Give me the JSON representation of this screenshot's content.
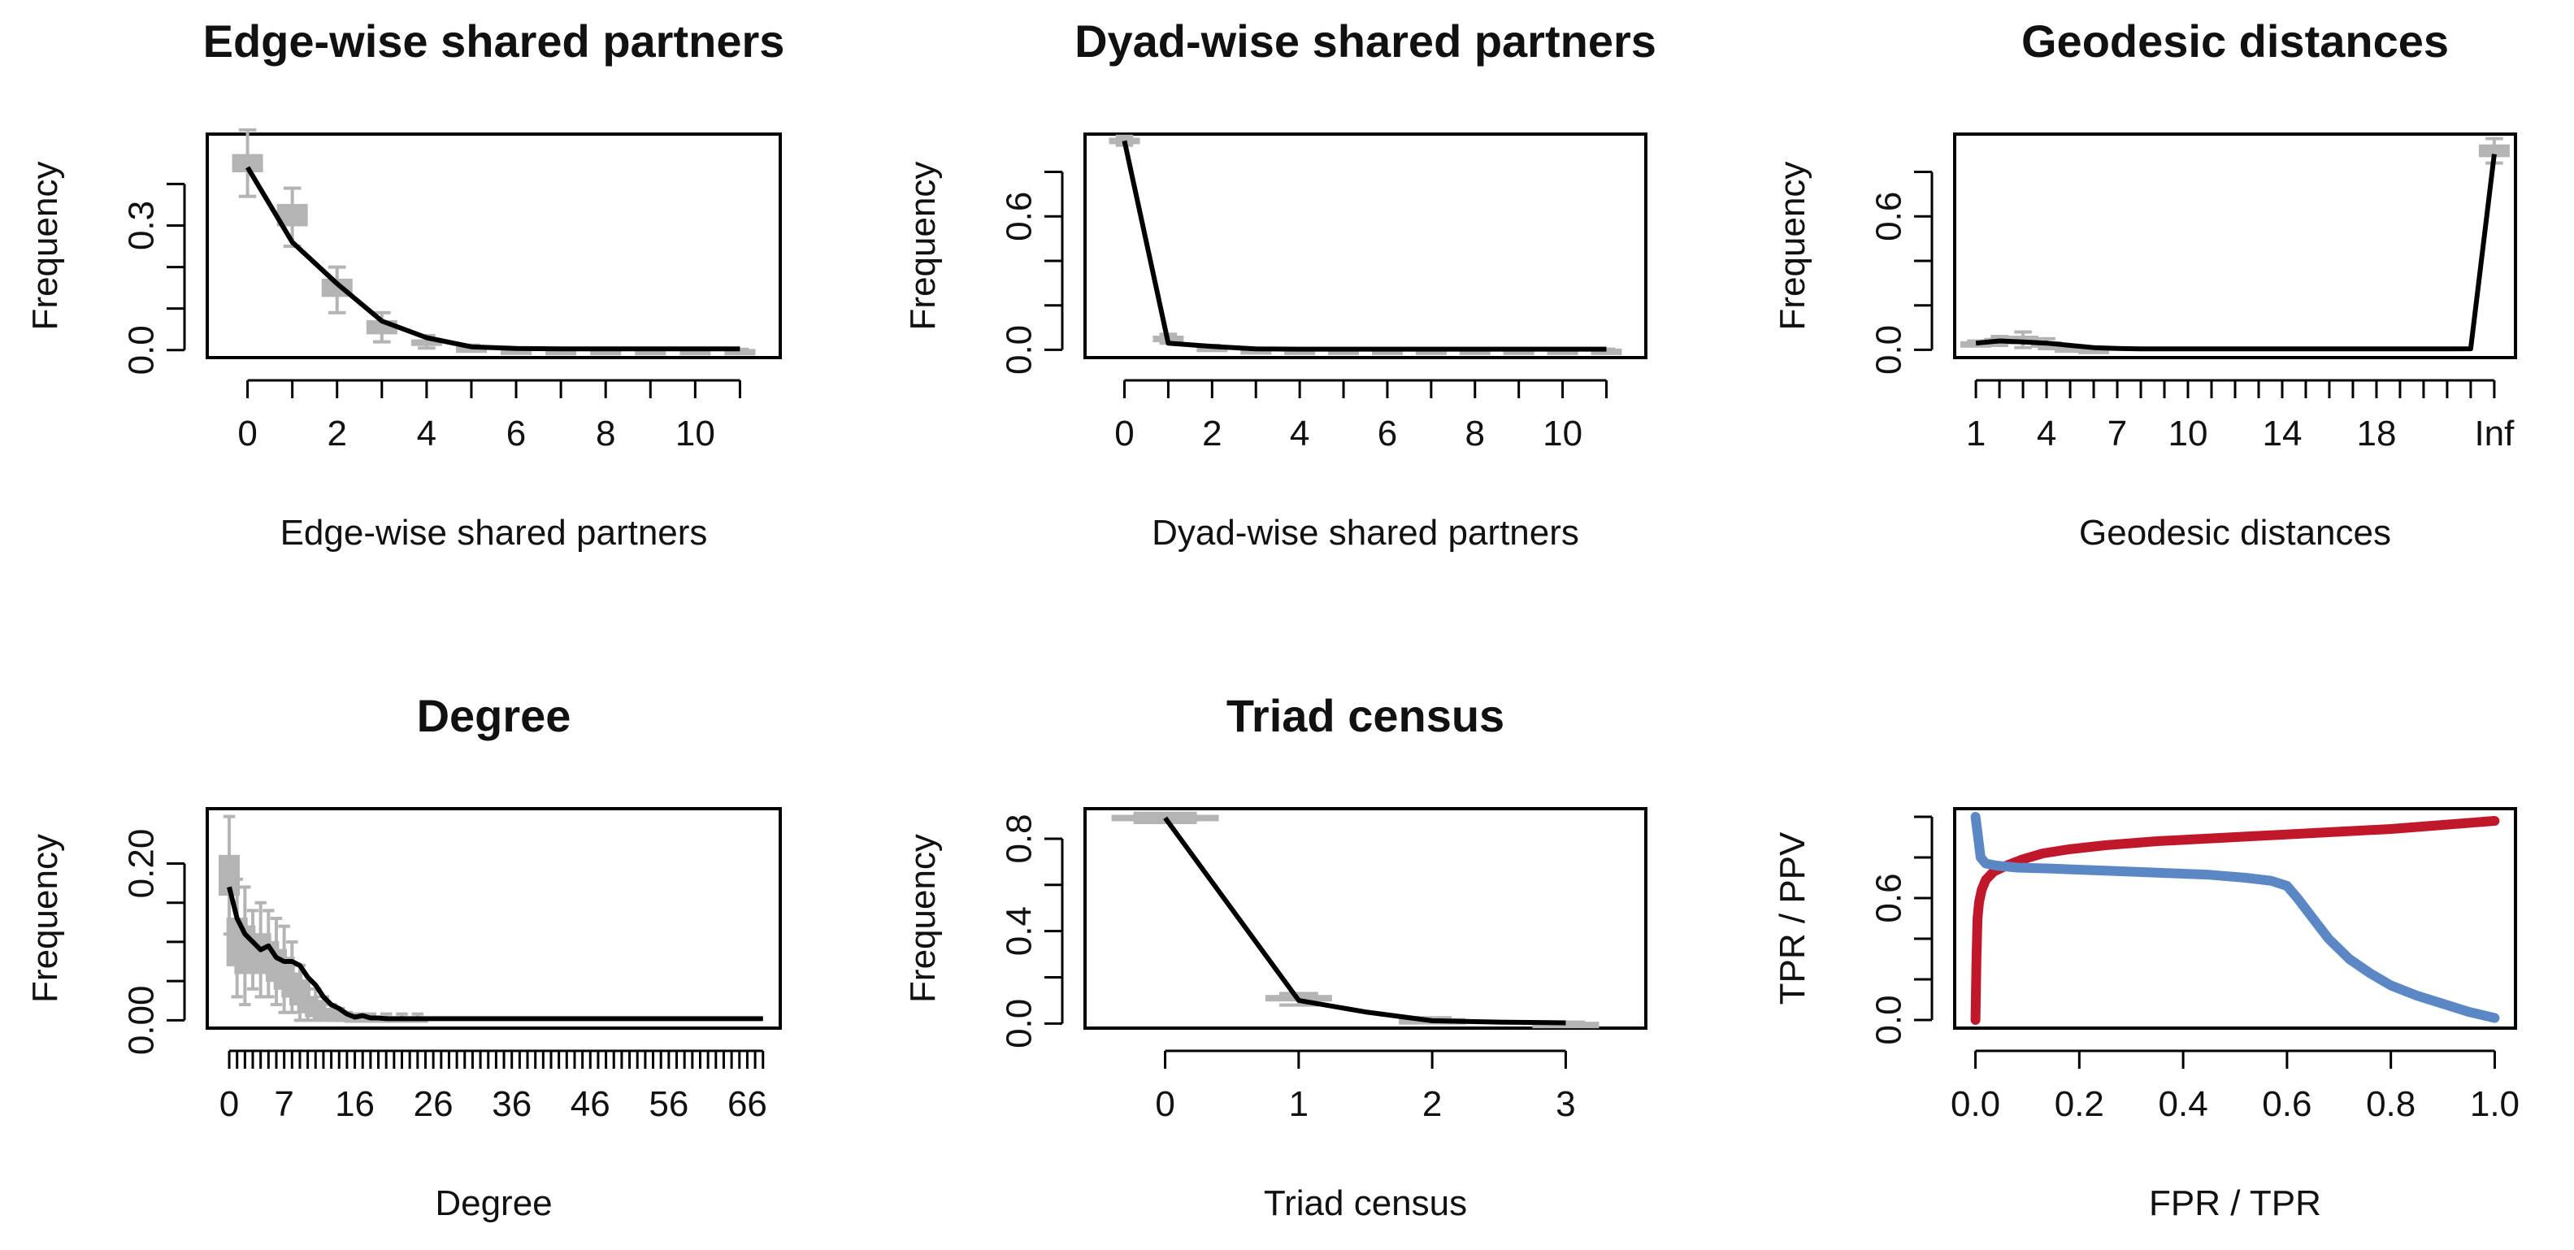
{
  "chart_data": [
    {
      "type": "line",
      "title": "Edge-wise shared partners",
      "xlabel": "Edge-wise shared partners",
      "ylabel": "Frequency",
      "xlim": [
        -0.9,
        11.9
      ],
      "ylim": [
        -0.018,
        0.52
      ],
      "xticks": [
        0,
        2,
        4,
        6,
        8,
        10
      ],
      "xminor": [
        0,
        1,
        2,
        3,
        4,
        5,
        6,
        7,
        8,
        9,
        10,
        11
      ],
      "yticks": [
        0,
        0.3
      ],
      "ytick_labels": [
        "0.0",
        "0.3"
      ],
      "yminor": [
        0.0,
        0.1,
        0.2,
        0.3,
        0.4
      ],
      "simulated": [
        {
          "x": 0,
          "lo": 0.37,
          "hi": 0.53,
          "q1": 0.43,
          "q3": 0.47
        },
        {
          "x": 1,
          "lo": 0.25,
          "hi": 0.39,
          "q1": 0.3,
          "q3": 0.35
        },
        {
          "x": 2,
          "lo": 0.09,
          "hi": 0.2,
          "q1": 0.13,
          "q3": 0.17
        },
        {
          "x": 3,
          "lo": 0.02,
          "hi": 0.09,
          "q1": 0.04,
          "q3": 0.07
        },
        {
          "x": 4,
          "lo": 0.005,
          "hi": 0.035,
          "q1": 0.012,
          "q3": 0.024
        },
        {
          "x": 5,
          "lo": 0.0,
          "hi": 0.012,
          "q1": 0.002,
          "q3": 0.007
        },
        {
          "x": 6,
          "lo": 0.0,
          "hi": 0.004,
          "q1": 0.0,
          "q3": 0.002
        },
        {
          "x": 7,
          "lo": 0,
          "hi": 0.002,
          "q1": 0,
          "q3": 0.001
        },
        {
          "x": 8,
          "lo": 0,
          "hi": 0.002,
          "q1": 0,
          "q3": 0.001
        },
        {
          "x": 9,
          "lo": 0,
          "hi": 0.002,
          "q1": 0,
          "q3": 0.001
        },
        {
          "x": 10,
          "lo": 0,
          "hi": 0.002,
          "q1": 0,
          "q3": 0.001
        },
        {
          "x": 11,
          "lo": 0,
          "hi": 0.002,
          "q1": 0,
          "q3": 0.001
        }
      ],
      "observed_x": [
        0,
        1,
        2,
        3,
        4,
        5,
        6,
        7,
        8,
        9,
        10,
        11
      ],
      "observed_y": [
        0.44,
        0.26,
        0.16,
        0.07,
        0.03,
        0.008,
        0.004,
        0.003,
        0.003,
        0.003,
        0.003,
        0.003
      ]
    },
    {
      "type": "line",
      "title": "Dyad-wise shared partners",
      "xlabel": "Dyad-wise shared partners",
      "ylabel": "Frequency",
      "xlim": [
        -0.9,
        11.9
      ],
      "ylim": [
        -0.035,
        0.97
      ],
      "xticks": [
        0,
        2,
        4,
        6,
        8,
        10
      ],
      "xminor": [
        0,
        1,
        2,
        3,
        4,
        5,
        6,
        7,
        8,
        9,
        10,
        11
      ],
      "yticks": [
        0,
        0.6
      ],
      "ytick_labels": [
        "0.0",
        "0.6"
      ],
      "yminor": [
        0.0,
        0.2,
        0.4,
        0.6,
        0.8
      ],
      "simulated": [
        {
          "x": 0,
          "lo": 0.92,
          "hi": 0.96,
          "q1": 0.93,
          "q3": 0.95
        },
        {
          "x": 1,
          "lo": 0.03,
          "hi": 0.07,
          "q1": 0.04,
          "q3": 0.06
        },
        {
          "x": 2,
          "lo": 0.005,
          "hi": 0.02,
          "q1": 0.008,
          "q3": 0.015
        },
        {
          "x": 3,
          "lo": 0.0,
          "hi": 0.006,
          "q1": 0.002,
          "q3": 0.004
        },
        {
          "x": 4,
          "lo": 0,
          "hi": 0.003,
          "q1": 0,
          "q3": 0.002
        },
        {
          "x": 5,
          "lo": 0,
          "hi": 0.003,
          "q1": 0,
          "q3": 0.002
        },
        {
          "x": 6,
          "lo": 0,
          "hi": 0.003,
          "q1": 0,
          "q3": 0.002
        },
        {
          "x": 7,
          "lo": 0,
          "hi": 0.003,
          "q1": 0,
          "q3": 0.002
        },
        {
          "x": 8,
          "lo": 0,
          "hi": 0.003,
          "q1": 0,
          "q3": 0.002
        },
        {
          "x": 9,
          "lo": 0,
          "hi": 0.003,
          "q1": 0,
          "q3": 0.002
        },
        {
          "x": 10,
          "lo": 0,
          "hi": 0.003,
          "q1": 0,
          "q3": 0.002
        },
        {
          "x": 11,
          "lo": 0,
          "hi": 0.003,
          "q1": 0,
          "q3": 0.002
        }
      ],
      "observed_x": [
        0,
        1,
        2,
        3,
        4,
        5,
        6,
        7,
        8,
        9,
        10,
        11
      ],
      "observed_y": [
        0.94,
        0.03,
        0.015,
        0.004,
        0.003,
        0.003,
        0.003,
        0.003,
        0.003,
        0.003,
        0.003,
        0.003
      ]
    },
    {
      "type": "line",
      "title": "Geodesic distances",
      "xlabel": "Geodesic distances",
      "ylabel": "Frequency",
      "xlim": [
        0.1,
        23.9
      ],
      "ylim": [
        -0.035,
        0.97
      ],
      "xticks": [
        1,
        4,
        7,
        10,
        14,
        18,
        23
      ],
      "xtick_labels": [
        "1",
        "4",
        "7",
        "10",
        "14",
        "18",
        "Inf"
      ],
      "xminor": [
        1,
        2,
        3,
        4,
        5,
        6,
        7,
        8,
        9,
        10,
        11,
        12,
        13,
        14,
        15,
        16,
        17,
        18,
        19,
        20,
        21,
        22,
        23
      ],
      "yticks": [
        0,
        0.6
      ],
      "ytick_labels": [
        "0.0",
        "0.6"
      ],
      "yminor": [
        0.0,
        0.2,
        0.4,
        0.6,
        0.8
      ],
      "simulated": [
        {
          "x": 1,
          "lo": 0.02,
          "hi": 0.04,
          "q1": 0.025,
          "q3": 0.035
        },
        {
          "x": 2,
          "lo": 0.02,
          "hi": 0.06,
          "q1": 0.03,
          "q3": 0.05
        },
        {
          "x": 3,
          "lo": 0.01,
          "hi": 0.08,
          "q1": 0.03,
          "q3": 0.06
        },
        {
          "x": 4,
          "lo": 0.005,
          "hi": 0.05,
          "q1": 0.015,
          "q3": 0.035
        },
        {
          "x": 5,
          "lo": 0.0,
          "hi": 0.02,
          "q1": 0.005,
          "q3": 0.012
        },
        {
          "x": 6,
          "lo": 0.0,
          "hi": 0.01,
          "q1": 0.002,
          "q3": 0.006
        },
        {
          "x": 23,
          "lo": 0.84,
          "hi": 0.95,
          "q1": 0.87,
          "q3": 0.92
        }
      ],
      "observed_x": [
        1,
        2,
        3,
        4,
        5,
        6,
        7,
        8,
        9,
        10,
        11,
        12,
        13,
        14,
        15,
        16,
        17,
        18,
        19,
        20,
        21,
        22,
        23
      ],
      "observed_y": [
        0.03,
        0.04,
        0.035,
        0.03,
        0.02,
        0.01,
        0.006,
        0.004,
        0.004,
        0.004,
        0.004,
        0.004,
        0.004,
        0.004,
        0.004,
        0.004,
        0.004,
        0.004,
        0.004,
        0.004,
        0.004,
        0.005,
        0.88
      ]
    },
    {
      "type": "line",
      "title": "Degree",
      "xlabel": "Degree",
      "ylabel": "Frequency",
      "xlim": [
        -2.8,
        70.2
      ],
      "ylim": [
        -0.01,
        0.27
      ],
      "xticks": [
        0,
        7,
        16,
        26,
        36,
        46,
        56,
        66
      ],
      "xticks_pre": [
        0,
        3,
        7
      ],
      "yticks": [
        0,
        0.2
      ],
      "ytick_labels": [
        "0.00",
        "0.20"
      ],
      "yminor": [
        0.0,
        0.05,
        0.1,
        0.15,
        0.2
      ],
      "simulated": [
        {
          "x": 0,
          "lo": 0.11,
          "hi": 0.26,
          "q1": 0.16,
          "q3": 0.21
        },
        {
          "x": 1,
          "lo": 0.03,
          "hi": 0.18,
          "q1": 0.07,
          "q3": 0.13
        },
        {
          "x": 2,
          "lo": 0.02,
          "hi": 0.17,
          "q1": 0.06,
          "q3": 0.12
        },
        {
          "x": 3,
          "lo": 0.04,
          "hi": 0.14,
          "q1": 0.07,
          "q3": 0.11
        },
        {
          "x": 4,
          "lo": 0.03,
          "hi": 0.15,
          "q1": 0.06,
          "q3": 0.11
        },
        {
          "x": 5,
          "lo": 0.03,
          "hi": 0.14,
          "q1": 0.06,
          "q3": 0.1
        },
        {
          "x": 6,
          "lo": 0.02,
          "hi": 0.13,
          "q1": 0.05,
          "q3": 0.09
        },
        {
          "x": 7,
          "lo": 0.01,
          "hi": 0.12,
          "q1": 0.04,
          "q3": 0.08
        },
        {
          "x": 8,
          "lo": 0.01,
          "hi": 0.1,
          "q1": 0.03,
          "q3": 0.06
        },
        {
          "x": 9,
          "lo": 0.0,
          "hi": 0.07,
          "q1": 0.02,
          "q3": 0.05
        },
        {
          "x": 10,
          "lo": 0.0,
          "hi": 0.05,
          "q1": 0.01,
          "q3": 0.03
        },
        {
          "x": 11,
          "lo": 0.0,
          "hi": 0.04,
          "q1": 0.005,
          "q3": 0.025
        },
        {
          "x": 12,
          "lo": 0.0,
          "hi": 0.03,
          "q1": 0.003,
          "q3": 0.015
        },
        {
          "x": 13,
          "lo": 0.0,
          "hi": 0.02,
          "q1": 0.002,
          "q3": 0.012
        },
        {
          "x": 14,
          "lo": 0.0,
          "hi": 0.015,
          "q1": 0.001,
          "q3": 0.008
        },
        {
          "x": 15,
          "lo": 0.0,
          "hi": 0.01,
          "q1": 0.0,
          "q3": 0.005
        },
        {
          "x": 16,
          "lo": 0.0,
          "hi": 0.008,
          "q1": 0.0,
          "q3": 0.004
        },
        {
          "x": 17,
          "lo": 0.0,
          "hi": 0.008,
          "q1": 0.0,
          "q3": 0.004
        },
        {
          "x": 18,
          "lo": 0.0,
          "hi": 0.008,
          "q1": 0.0,
          "q3": 0.004
        },
        {
          "x": 20,
          "lo": 0.0,
          "hi": 0.008,
          "q1": 0.0,
          "q3": 0.004
        },
        {
          "x": 22,
          "lo": 0.0,
          "hi": 0.008,
          "q1": 0.0,
          "q3": 0.004
        },
        {
          "x": 24,
          "lo": 0.0,
          "hi": 0.008,
          "q1": 0.0,
          "q3": 0.004
        }
      ],
      "observed_x": [
        0,
        1,
        2,
        3,
        4,
        5,
        6,
        7,
        8,
        9,
        10,
        11,
        12,
        13,
        14,
        15,
        16,
        17,
        18,
        19,
        20,
        25,
        30,
        35,
        40,
        45,
        50,
        55,
        60,
        65,
        68
      ],
      "observed_y": [
        0.17,
        0.13,
        0.11,
        0.1,
        0.09,
        0.095,
        0.08,
        0.075,
        0.075,
        0.07,
        0.055,
        0.045,
        0.03,
        0.02,
        0.015,
        0.008,
        0.004,
        0.006,
        0.003,
        0.003,
        0.002,
        0.002,
        0.002,
        0.002,
        0.002,
        0.002,
        0.002,
        0.002,
        0.002,
        0.002,
        0.002
      ]
    },
    {
      "type": "line",
      "title": "Triad census",
      "xlabel": "Triad census",
      "ylabel": "Frequency",
      "xlim": [
        -0.6,
        3.6
      ],
      "ylim": [
        -0.02,
        0.93
      ],
      "xticks": [
        0,
        1,
        2,
        3
      ],
      "yticks": [
        0,
        0.4,
        0.8
      ],
      "ytick_labels": [
        "0.0",
        "0.4",
        "0.8"
      ],
      "yminor": [
        0.0,
        0.2,
        0.4,
        0.6,
        0.8
      ],
      "simulated": [
        {
          "x": 0,
          "lo": 0.87,
          "hi": 0.91,
          "q1": 0.88,
          "q3": 0.9
        },
        {
          "x": 1,
          "lo": 0.08,
          "hi": 0.13,
          "q1": 0.1,
          "q3": 0.12
        },
        {
          "x": 2,
          "lo": 0.005,
          "hi": 0.025,
          "q1": 0.01,
          "q3": 0.02
        },
        {
          "x": 3,
          "lo": 0.0,
          "hi": 0.006,
          "q1": 0.001,
          "q3": 0.004
        }
      ],
      "observed_x": [
        0,
        1,
        1.5,
        2,
        2.5,
        3
      ],
      "observed_y": [
        0.89,
        0.1,
        0.05,
        0.012,
        0.006,
        0.003
      ]
    },
    {
      "type": "line",
      "title": "",
      "xlabel": "FPR / TPR",
      "ylabel": "TPR / PPV",
      "xlim": [
        -0.04,
        1.04
      ],
      "ylim": [
        -0.04,
        1.04
      ],
      "xticks": [
        0.0,
        0.2,
        0.4,
        0.6,
        0.8,
        1.0
      ],
      "xtick_labels": [
        "0.0",
        "0.2",
        "0.4",
        "0.6",
        "0.8",
        "1.0"
      ],
      "yticks": [
        0.0,
        0.6
      ],
      "ytick_labels": [
        "0.0",
        "0.6"
      ],
      "yminor": [
        0.0,
        0.2,
        0.4,
        0.6,
        0.8,
        1.0
      ],
      "series": [
        {
          "color": "#c0182a",
          "x": [
            0,
            0.002,
            0.004,
            0.007,
            0.012,
            0.02,
            0.035,
            0.06,
            0.09,
            0.13,
            0.18,
            0.25,
            0.35,
            0.5,
            0.65,
            0.8,
            0.9,
            1.0
          ],
          "y": [
            0.0,
            0.3,
            0.5,
            0.58,
            0.64,
            0.69,
            0.73,
            0.76,
            0.79,
            0.82,
            0.84,
            0.86,
            0.88,
            0.9,
            0.92,
            0.94,
            0.96,
            0.98
          ]
        },
        {
          "color": "#5b88c4",
          "x": [
            0,
            0.005,
            0.01,
            0.02,
            0.04,
            0.08,
            0.15,
            0.25,
            0.35,
            0.45,
            0.52,
            0.57,
            0.6,
            0.62,
            0.65,
            0.68,
            0.72,
            0.76,
            0.8,
            0.85,
            0.9,
            0.95,
            1.0
          ],
          "y": [
            1.0,
            0.9,
            0.8,
            0.77,
            0.76,
            0.75,
            0.745,
            0.735,
            0.725,
            0.715,
            0.7,
            0.685,
            0.66,
            0.6,
            0.5,
            0.4,
            0.3,
            0.23,
            0.17,
            0.12,
            0.08,
            0.04,
            0.01
          ]
        }
      ]
    }
  ]
}
